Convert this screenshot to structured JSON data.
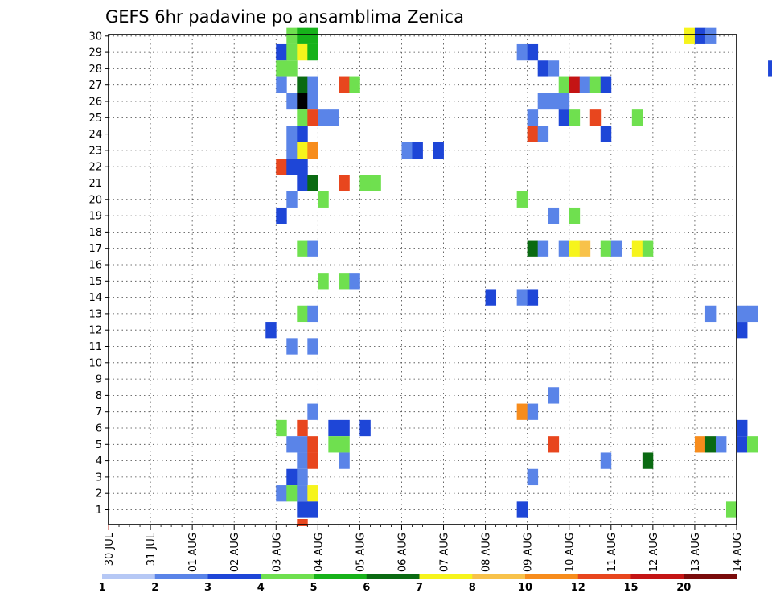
{
  "chart_data": {
    "type": "heatmap",
    "title": "GEFS 6hr padavine po ansamblima Zenica",
    "x_labels": [
      "30 JUL",
      "31 JUL",
      "01 AUG",
      "02 AUG",
      "03 AUG",
      "04 AUG",
      "05 AUG",
      "06 AUG",
      "07 AUG",
      "08 AUG",
      "09 AUG",
      "10 AUG",
      "11 AUG",
      "12 AUG",
      "13 AUG",
      "14 AUG"
    ],
    "x_steps_per_day": 4,
    "y_labels": [
      "1",
      "2",
      "3",
      "4",
      "5",
      "6",
      "7",
      "8",
      "9",
      "10",
      "11",
      "12",
      "13",
      "14",
      "15",
      "16",
      "17",
      "18",
      "19",
      "20",
      "21",
      "22",
      "23",
      "24",
      "25",
      "26",
      "27",
      "28",
      "29",
      "30"
    ],
    "grid": true,
    "colorbar": {
      "labels": [
        "1",
        "2",
        "3",
        "4",
        "5",
        "6",
        "7",
        "8",
        "10",
        "12",
        "15",
        "20"
      ],
      "colors": [
        "#b6c8f5",
        "#5a84e8",
        "#1e46d7",
        "#6fe04f",
        "#17b21a",
        "#0a6a12",
        "#f6f41c",
        "#f8c24a",
        "#f78c1c",
        "#e8461e",
        "#c41414",
        "#7a0b0b"
      ]
    },
    "cells": [
      [
        30,
        4,
        1,
        3
      ],
      [
        30,
        4,
        2,
        4
      ],
      [
        30,
        4,
        3,
        4
      ],
      [
        30,
        13,
        3,
        6
      ],
      [
        30,
        13,
        4,
        2
      ],
      [
        30,
        14,
        1,
        1
      ],
      [
        29,
        4,
        0,
        2
      ],
      [
        29,
        4,
        1,
        3
      ],
      [
        29,
        4,
        2,
        6
      ],
      [
        29,
        4,
        3,
        4
      ],
      [
        29,
        9,
        3,
        1
      ],
      [
        29,
        10,
        0,
        2
      ],
      [
        28,
        4,
        0,
        3
      ],
      [
        28,
        4,
        1,
        3
      ],
      [
        28,
        10,
        1,
        2
      ],
      [
        28,
        10,
        2,
        1
      ],
      [
        28,
        15,
        3,
        2
      ],
      [
        27,
        4,
        0,
        1
      ],
      [
        27,
        4,
        2,
        5
      ],
      [
        27,
        4,
        3,
        1
      ],
      [
        27,
        5,
        2,
        9
      ],
      [
        27,
        5,
        3,
        3
      ],
      [
        27,
        10,
        3,
        3
      ],
      [
        27,
        11,
        0,
        10
      ],
      [
        27,
        11,
        1,
        1
      ],
      [
        27,
        11,
        2,
        3
      ],
      [
        27,
        11,
        3,
        2
      ],
      [
        26,
        4,
        1,
        1
      ],
      [
        26,
        4,
        2,
        12
      ],
      [
        26,
        4,
        3,
        1
      ],
      [
        26,
        10,
        1,
        1
      ],
      [
        26,
        10,
        2,
        1
      ],
      [
        26,
        10,
        3,
        1
      ],
      [
        25,
        4,
        2,
        3
      ],
      [
        25,
        4,
        3,
        9
      ],
      [
        25,
        5,
        0,
        1
      ],
      [
        25,
        5,
        1,
        1
      ],
      [
        25,
        10,
        0,
        1
      ],
      [
        25,
        10,
        3,
        2
      ],
      [
        25,
        11,
        0,
        3
      ],
      [
        25,
        11,
        2,
        9
      ],
      [
        25,
        12,
        2,
        3
      ],
      [
        24,
        4,
        1,
        1
      ],
      [
        24,
        4,
        2,
        2
      ],
      [
        24,
        10,
        0,
        9
      ],
      [
        24,
        10,
        1,
        1
      ],
      [
        24,
        11,
        3,
        2
      ],
      [
        23,
        4,
        1,
        1
      ],
      [
        23,
        4,
        2,
        6
      ],
      [
        23,
        4,
        3,
        8
      ],
      [
        23,
        7,
        0,
        1
      ],
      [
        23,
        7,
        1,
        2
      ],
      [
        23,
        7,
        3,
        2
      ],
      [
        22,
        4,
        0,
        9
      ],
      [
        22,
        4,
        1,
        2
      ],
      [
        22,
        4,
        2,
        2
      ],
      [
        21,
        4,
        2,
        2
      ],
      [
        21,
        4,
        3,
        5
      ],
      [
        21,
        5,
        2,
        9
      ],
      [
        21,
        6,
        0,
        3
      ],
      [
        21,
        6,
        1,
        3
      ],
      [
        20,
        4,
        1,
        1
      ],
      [
        20,
        5,
        0,
        3
      ],
      [
        20,
        9,
        3,
        3
      ],
      [
        19,
        4,
        0,
        2
      ],
      [
        19,
        10,
        2,
        1
      ],
      [
        19,
        11,
        0,
        3
      ],
      [
        17,
        4,
        2,
        3
      ],
      [
        17,
        4,
        3,
        1
      ],
      [
        17,
        10,
        0,
        5
      ],
      [
        17,
        10,
        1,
        1
      ],
      [
        17,
        10,
        3,
        1
      ],
      [
        17,
        11,
        0,
        6
      ],
      [
        17,
        11,
        1,
        7
      ],
      [
        17,
        11,
        3,
        3
      ],
      [
        17,
        12,
        0,
        1
      ],
      [
        17,
        12,
        2,
        6
      ],
      [
        17,
        12,
        3,
        3
      ],
      [
        15,
        5,
        0,
        3
      ],
      [
        15,
        5,
        2,
        3
      ],
      [
        15,
        5,
        3,
        1
      ],
      [
        14,
        9,
        0,
        2
      ],
      [
        14,
        9,
        3,
        1
      ],
      [
        14,
        10,
        0,
        2
      ],
      [
        13,
        4,
        2,
        3
      ],
      [
        13,
        4,
        3,
        1
      ],
      [
        13,
        14,
        1,
        1
      ],
      [
        13,
        15,
        0,
        1
      ],
      [
        13,
        15,
        1,
        1
      ],
      [
        12,
        3,
        3,
        2
      ],
      [
        12,
        15,
        0,
        2
      ],
      [
        11,
        4,
        1,
        1
      ],
      [
        11,
        4,
        3,
        1
      ],
      [
        8,
        10,
        2,
        1
      ],
      [
        7,
        4,
        3,
        1
      ],
      [
        7,
        9,
        3,
        8
      ],
      [
        7,
        10,
        0,
        1
      ],
      [
        6,
        4,
        0,
        3
      ],
      [
        6,
        4,
        2,
        9
      ],
      [
        6,
        5,
        1,
        2
      ],
      [
        6,
        5,
        2,
        2
      ],
      [
        6,
        6,
        0,
        2
      ],
      [
        6,
        15,
        0,
        2
      ],
      [
        5,
        4,
        1,
        1
      ],
      [
        5,
        4,
        2,
        1
      ],
      [
        5,
        4,
        3,
        9
      ],
      [
        5,
        5,
        1,
        3
      ],
      [
        5,
        5,
        2,
        3
      ],
      [
        5,
        10,
        2,
        9
      ],
      [
        5,
        14,
        0,
        8
      ],
      [
        5,
        14,
        1,
        5
      ],
      [
        5,
        14,
        2,
        1
      ],
      [
        5,
        15,
        0,
        2
      ],
      [
        5,
        15,
        1,
        3
      ],
      [
        4,
        4,
        2,
        1
      ],
      [
        4,
        4,
        3,
        9
      ],
      [
        4,
        5,
        2,
        1
      ],
      [
        4,
        11,
        3,
        1
      ],
      [
        4,
        12,
        3,
        5
      ],
      [
        3,
        4,
        1,
        2
      ],
      [
        3,
        4,
        2,
        1
      ],
      [
        3,
        10,
        0,
        1
      ],
      [
        2,
        4,
        0,
        1
      ],
      [
        2,
        4,
        1,
        3
      ],
      [
        2,
        4,
        2,
        1
      ],
      [
        2,
        4,
        3,
        6
      ],
      [
        1,
        4,
        2,
        2
      ],
      [
        1,
        4,
        3,
        2
      ],
      [
        1,
        9,
        3,
        2
      ],
      [
        1,
        14,
        3,
        3
      ],
      [
        0,
        4,
        2,
        9
      ]
    ]
  }
}
